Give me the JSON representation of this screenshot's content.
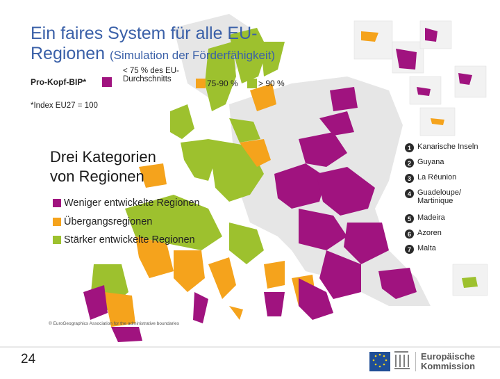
{
  "title": {
    "main": "Ein faires System für alle EU-Regionen",
    "sub": "(Simulation der Förderfähigkeit)"
  },
  "legend": {
    "gdp_label": "Pro-Kopf-BIP*",
    "items": [
      {
        "label": "< 75 % des EU-Durchschnitts",
        "color": "#a0137f"
      },
      {
        "label": "75-90 %",
        "color": "#f5a31c"
      },
      {
        "label": "> 90 %",
        "color": "#9dc12e"
      }
    ],
    "index_note": "*Index EU27 = 100"
  },
  "categories": {
    "heading_line1": "Drei Kategorien",
    "heading_line2": "von Regionen",
    "items": [
      {
        "label": "Weniger entwickelte Regionen",
        "color": "#a0137f"
      },
      {
        "label": "Übergangsregionen",
        "color": "#f5a31c"
      },
      {
        "label": "Stärker entwickelte Regionen",
        "color": "#9dc12e"
      }
    ]
  },
  "outermost_regions": [
    {
      "num": "1",
      "name": "Kanarische Inseln"
    },
    {
      "num": "2",
      "name": "Guyana"
    },
    {
      "num": "3",
      "name": "La Réunion"
    },
    {
      "num": "4",
      "name": "Guadeloupe/ Martinique"
    },
    {
      "num": "5",
      "name": "Madeira"
    },
    {
      "num": "6",
      "name": "Azoren"
    },
    {
      "num": "7",
      "name": "Malta"
    }
  ],
  "copyright": "© EuroGeographics Association for the administrative boundaries",
  "page_number": "24",
  "footer": {
    "org_line1": "Europäische",
    "org_line2": "Kommission"
  },
  "colors": {
    "title": "#3a60a8",
    "less_developed": "#a0137f",
    "transition": "#f5a31c",
    "more_developed": "#9dc12e",
    "non_eu": "#e6e6e6",
    "sea": "#ffffff",
    "footer_blue": "#1f4e96"
  }
}
